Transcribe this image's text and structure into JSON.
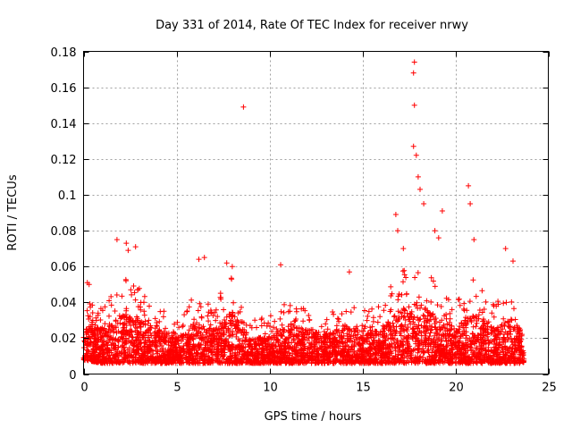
{
  "chart_data": {
    "type": "scatter",
    "title": "Day 331 of 2014, Rate Of TEC Index for receiver nrwy",
    "xlabel": "GPS time / hours",
    "ylabel": "ROTI / TECUs",
    "xlim": [
      0,
      25
    ],
    "ylim": [
      0,
      0.18
    ],
    "xticks": [
      0,
      5,
      10,
      15,
      20,
      25
    ],
    "yticks": [
      0,
      0.02,
      0.04,
      0.06,
      0.08,
      0.1,
      0.12,
      0.14,
      0.16,
      0.18
    ],
    "ytick_labels": [
      "0",
      "0.02",
      "0.04",
      "0.06",
      "0.08",
      "0.1",
      "0.12",
      "0.14",
      "0.16",
      "0.18"
    ],
    "grid": true,
    "marker": "plus",
    "color": "#ff0000",
    "notable_points": [
      {
        "x": 8.6,
        "y": 0.149
      },
      {
        "x": 10.6,
        "y": 0.061
      },
      {
        "x": 17.8,
        "y": 0.174
      },
      {
        "x": 17.75,
        "y": 0.168
      },
      {
        "x": 17.8,
        "y": 0.15
      },
      {
        "x": 17.75,
        "y": 0.127
      },
      {
        "x": 17.9,
        "y": 0.122
      },
      {
        "x": 18.0,
        "y": 0.11
      },
      {
        "x": 18.1,
        "y": 0.103
      },
      {
        "x": 18.3,
        "y": 0.095
      },
      {
        "x": 19.3,
        "y": 0.091
      },
      {
        "x": 20.7,
        "y": 0.105
      },
      {
        "x": 20.8,
        "y": 0.095
      },
      {
        "x": 16.8,
        "y": 0.089
      },
      {
        "x": 16.9,
        "y": 0.08
      },
      {
        "x": 1.8,
        "y": 0.075
      },
      {
        "x": 2.3,
        "y": 0.073
      },
      {
        "x": 2.8,
        "y": 0.071
      },
      {
        "x": 2.4,
        "y": 0.069
      },
      {
        "x": 18.9,
        "y": 0.08
      },
      {
        "x": 19.1,
        "y": 0.076
      },
      {
        "x": 21.0,
        "y": 0.075
      },
      {
        "x": 22.7,
        "y": 0.07
      },
      {
        "x": 17.2,
        "y": 0.07
      },
      {
        "x": 0.2,
        "y": 0.051
      },
      {
        "x": 0.3,
        "y": 0.05
      },
      {
        "x": 6.2,
        "y": 0.064
      },
      {
        "x": 6.5,
        "y": 0.065
      },
      {
        "x": 7.7,
        "y": 0.062
      },
      {
        "x": 8.0,
        "y": 0.06
      },
      {
        "x": 14.3,
        "y": 0.057
      },
      {
        "x": 23.1,
        "y": 0.063
      }
    ],
    "bulk_envelope": [
      {
        "x": 0.0,
        "lo": 0.008,
        "hi": 0.04
      },
      {
        "x": 1.0,
        "lo": 0.006,
        "hi": 0.04
      },
      {
        "x": 2.0,
        "lo": 0.006,
        "hi": 0.05
      },
      {
        "x": 2.5,
        "lo": 0.006,
        "hi": 0.055
      },
      {
        "x": 3.5,
        "lo": 0.006,
        "hi": 0.042
      },
      {
        "x": 4.5,
        "lo": 0.006,
        "hi": 0.035
      },
      {
        "x": 5.0,
        "lo": 0.006,
        "hi": 0.03
      },
      {
        "x": 6.0,
        "lo": 0.006,
        "hi": 0.045
      },
      {
        "x": 7.0,
        "lo": 0.006,
        "hi": 0.04
      },
      {
        "x": 8.0,
        "lo": 0.006,
        "hi": 0.055
      },
      {
        "x": 9.0,
        "lo": 0.006,
        "hi": 0.03
      },
      {
        "x": 10.0,
        "lo": 0.006,
        "hi": 0.032
      },
      {
        "x": 11.0,
        "lo": 0.006,
        "hi": 0.042
      },
      {
        "x": 12.0,
        "lo": 0.006,
        "hi": 0.04
      },
      {
        "x": 13.0,
        "lo": 0.006,
        "hi": 0.034
      },
      {
        "x": 14.0,
        "lo": 0.006,
        "hi": 0.042
      },
      {
        "x": 15.0,
        "lo": 0.006,
        "hi": 0.036
      },
      {
        "x": 16.0,
        "lo": 0.006,
        "hi": 0.04
      },
      {
        "x": 17.0,
        "lo": 0.006,
        "hi": 0.058
      },
      {
        "x": 18.0,
        "lo": 0.006,
        "hi": 0.065
      },
      {
        "x": 19.0,
        "lo": 0.006,
        "hi": 0.05
      },
      {
        "x": 20.0,
        "lo": 0.006,
        "hi": 0.04
      },
      {
        "x": 21.0,
        "lo": 0.006,
        "hi": 0.055
      },
      {
        "x": 22.0,
        "lo": 0.006,
        "hi": 0.04
      },
      {
        "x": 23.0,
        "lo": 0.006,
        "hi": 0.048
      },
      {
        "x": 23.7,
        "lo": 0.006,
        "hi": 0.035
      }
    ]
  }
}
